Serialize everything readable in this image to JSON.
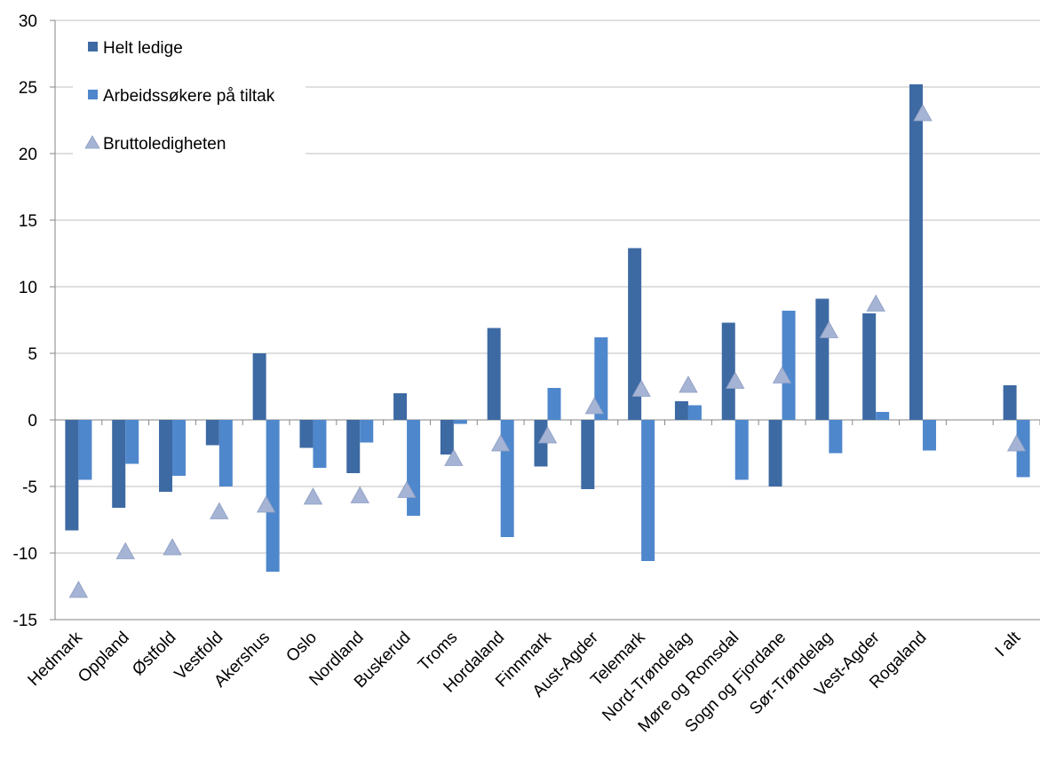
{
  "chart_data": {
    "type": "bar",
    "categories": [
      "Hedmark",
      "Oppland",
      "Østfold",
      "Vestfold",
      "Akershus",
      "Oslo",
      "Nordland",
      "Buskerud",
      "Troms",
      "Hordaland",
      "Finnmark",
      "Aust-Agder",
      "Telemark",
      "Nord-Trøndelag",
      "Møre og Romsdal",
      "Sogn og Fjordane",
      "Sør-Trøndelag",
      "Vest-Agder",
      "Rogaland",
      "",
      "I alt"
    ],
    "series": [
      {
        "name": "Helt ledige",
        "type": "bar",
        "color": "#3d6aa3",
        "values": [
          -8.3,
          -6.6,
          -5.4,
          -1.9,
          5.0,
          -2.1,
          -4.0,
          2.0,
          -2.6,
          6.9,
          -3.5,
          -5.2,
          12.9,
          1.4,
          7.3,
          -5.0,
          9.1,
          8.0,
          25.2,
          null,
          2.6
        ]
      },
      {
        "name": "Arbeidssøkere på tiltak",
        "type": "bar",
        "color": "#4f87cc",
        "values": [
          -4.5,
          -3.3,
          -4.2,
          -5.0,
          -11.4,
          -3.6,
          -1.7,
          -7.2,
          -0.3,
          -8.8,
          2.4,
          6.2,
          -10.6,
          1.1,
          -4.5,
          8.2,
          -2.5,
          0.6,
          -2.3,
          null,
          -4.3
        ]
      },
      {
        "name": "Bruttoledigheten",
        "type": "scatter",
        "marker": "triangle",
        "color": "#a5b4d4",
        "values": [
          -12.8,
          -9.9,
          -9.6,
          -6.9,
          -6.4,
          -5.8,
          -5.7,
          -5.3,
          -2.9,
          -1.8,
          -1.2,
          1.0,
          2.3,
          2.6,
          2.9,
          3.3,
          6.7,
          8.7,
          23.0,
          null,
          -1.8
        ]
      }
    ],
    "ylim": [
      -15,
      30
    ],
    "yticks": [
      -15,
      -10,
      -5,
      0,
      5,
      10,
      15,
      20,
      25,
      30
    ],
    "ytick_labels": [
      "-15",
      "-10",
      "-5",
      "0",
      "5",
      "10",
      "15",
      "20",
      "25",
      "30"
    ],
    "grid": true,
    "legend_position": "top-left",
    "title": "",
    "xlabel": "",
    "ylabel": ""
  }
}
